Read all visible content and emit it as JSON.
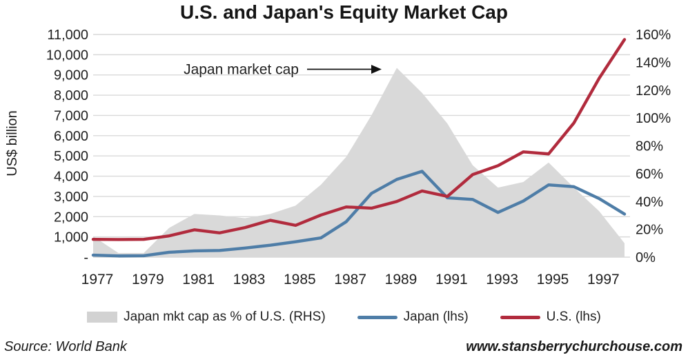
{
  "title": "U.S. and Japan's Equity Market Cap",
  "chart_data": {
    "type": "line",
    "x": [
      1977,
      1978,
      1979,
      1980,
      1981,
      1982,
      1983,
      1984,
      1985,
      1986,
      1987,
      1988,
      1989,
      1990,
      1991,
      1992,
      1993,
      1994,
      1995,
      1996,
      1997,
      1998
    ],
    "series": [
      {
        "name": "Japan mkt cap as % of U.S. (RHS)",
        "axis": "right",
        "style": "area",
        "color": "#d9d9d9",
        "values": [
          15,
          3,
          3,
          21,
          31,
          30,
          28,
          31,
          37,
          52,
          72,
          102,
          136,
          118,
          96,
          66,
          50,
          54,
          68,
          50,
          33,
          10
        ]
      },
      {
        "name": "Japan (lhs)",
        "axis": "left",
        "style": "line",
        "color": "#4e7da7",
        "values": [
          100,
          60,
          70,
          240,
          310,
          330,
          450,
          590,
          760,
          950,
          1750,
          3150,
          3840,
          4240,
          2930,
          2850,
          2210,
          2770,
          3570,
          3480,
          2890,
          2130
        ]
      },
      {
        "name": "U.S. (lhs)",
        "axis": "left",
        "style": "line",
        "color": "#b12b3d",
        "values": [
          880,
          870,
          880,
          1050,
          1350,
          1200,
          1460,
          1820,
          1570,
          2080,
          2480,
          2420,
          2750,
          3270,
          3000,
          4080,
          4520,
          5200,
          5100,
          6630,
          8840,
          10750
        ]
      }
    ],
    "left_axis": {
      "label": "US$ billion",
      "min": 0,
      "max": 11000,
      "tick_step": 1000,
      "tick_labels": [
        "-",
        "1,000",
        "2,000",
        "3,000",
        "4,000",
        "5,000",
        "6,000",
        "7,000",
        "8,000",
        "9,000",
        "10,000",
        "11,000"
      ]
    },
    "right_axis": {
      "min": 0,
      "max": 160,
      "tick_step": 20,
      "tick_labels": [
        "0%",
        "20%",
        "40%",
        "60%",
        "80%",
        "100%",
        "120%",
        "140%",
        "160%"
      ]
    },
    "x_tick_labels": [
      "1977",
      "1979",
      "1981",
      "1983",
      "1985",
      "1987",
      "1989",
      "1991",
      "1993",
      "1995",
      "1997"
    ],
    "annotation": {
      "text": "Japan market cap",
      "points_to_year": 1989,
      "points_to_pct": 135
    },
    "grid": true,
    "legend_position": "bottom"
  },
  "footer": {
    "source": "Source: World Bank",
    "website": "www.stansberrychurchouse.com"
  }
}
